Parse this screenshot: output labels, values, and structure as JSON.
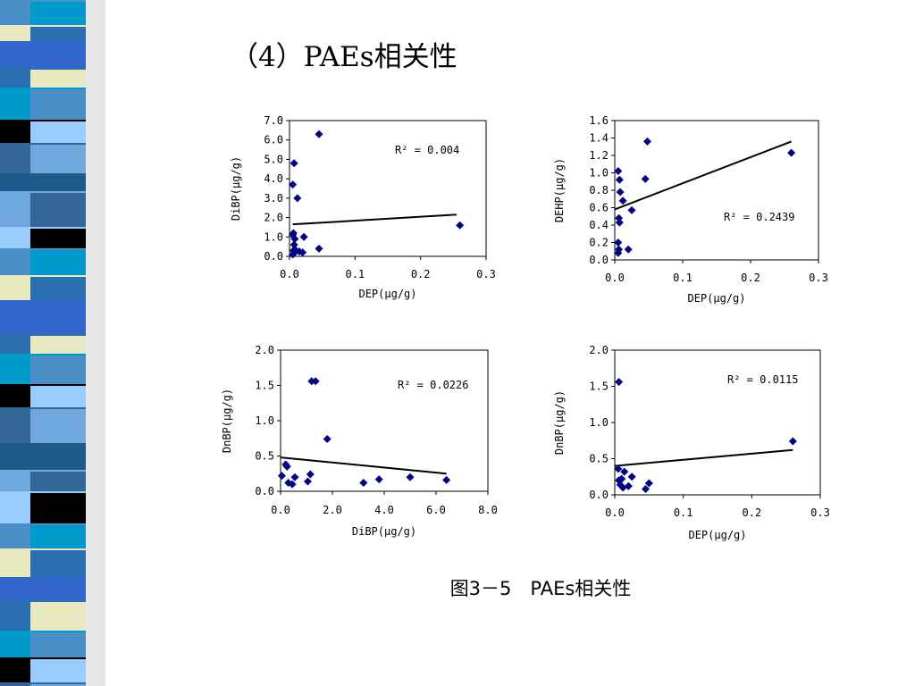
{
  "slide": {
    "title": "（4）PAEs相关性",
    "caption": "图3－5　PAEs相关性"
  },
  "colors": {
    "point": "#00008B",
    "trendline": "#000000",
    "strip": [
      "#4A90C8",
      "#1E5A8C",
      "#0099CC",
      "#E8E8C0",
      "#6FA8DC",
      "#000000",
      "#3366CC",
      "#99CCFF",
      "#336699",
      "#2A6FB0"
    ]
  },
  "chart_data": [
    {
      "type": "scatter",
      "xlabel": "DEP(μg/g)",
      "ylabel": "DiBP(μg/g)",
      "xlim": [
        0,
        0.3
      ],
      "ylim": [
        0,
        7
      ],
      "xticks": [
        "0.0",
        "0.1",
        "0.2",
        "0.3"
      ],
      "yticks": [
        "0.0",
        "1.0",
        "2.0",
        "3.0",
        "4.0",
        "5.0",
        "6.0",
        "7.0"
      ],
      "annotation": {
        "text": "R² = 0.004"
      },
      "points": [
        {
          "x": 0.005,
          "y": 0.1
        },
        {
          "x": 0.006,
          "y": 0.3
        },
        {
          "x": 0.008,
          "y": 0.2
        },
        {
          "x": 0.007,
          "y": 0.6
        },
        {
          "x": 0.005,
          "y": 1.1
        },
        {
          "x": 0.006,
          "y": 1.2
        },
        {
          "x": 0.008,
          "y": 0.9
        },
        {
          "x": 0.01,
          "y": 0.3
        },
        {
          "x": 0.015,
          "y": 0.25
        },
        {
          "x": 0.02,
          "y": 0.2
        },
        {
          "x": 0.022,
          "y": 1.0
        },
        {
          "x": 0.005,
          "y": 3.7
        },
        {
          "x": 0.012,
          "y": 3.0
        },
        {
          "x": 0.007,
          "y": 4.8
        },
        {
          "x": 0.045,
          "y": 6.3
        },
        {
          "x": 0.045,
          "y": 0.4
        },
        {
          "x": 0.26,
          "y": 1.6
        }
      ],
      "trendline": [
        {
          "x": 0.005,
          "y": 1.65
        },
        {
          "x": 0.255,
          "y": 2.15
        }
      ]
    },
    {
      "type": "scatter",
      "xlabel": "DEP(μg/g)",
      "ylabel": "DEHP(μg/g)",
      "xlim": [
        0,
        0.3
      ],
      "ylim": [
        0,
        1.6
      ],
      "xticks": [
        "0.0",
        "0.1",
        "0.2",
        "0.3"
      ],
      "yticks": [
        "0.0",
        "0.2",
        "0.4",
        "0.6",
        "0.8",
        "1.0",
        "1.2",
        "1.4",
        "1.6"
      ],
      "annotation": {
        "text": "R² = 0.2439"
      },
      "points": [
        {
          "x": 0.005,
          "y": 0.08
        },
        {
          "x": 0.006,
          "y": 0.12
        },
        {
          "x": 0.005,
          "y": 0.2
        },
        {
          "x": 0.007,
          "y": 0.43
        },
        {
          "x": 0.006,
          "y": 0.48
        },
        {
          "x": 0.008,
          "y": 0.78
        },
        {
          "x": 0.007,
          "y": 0.92
        },
        {
          "x": 0.005,
          "y": 1.02
        },
        {
          "x": 0.012,
          "y": 0.68
        },
        {
          "x": 0.02,
          "y": 0.12
        },
        {
          "x": 0.025,
          "y": 0.57
        },
        {
          "x": 0.045,
          "y": 0.93
        },
        {
          "x": 0.048,
          "y": 1.36
        },
        {
          "x": 0.26,
          "y": 1.23
        }
      ],
      "trendline": [
        {
          "x": 0.0,
          "y": 0.58
        },
        {
          "x": 0.26,
          "y": 1.36
        }
      ]
    },
    {
      "type": "scatter",
      "xlabel": "DiBP(μg/g)",
      "ylabel": "DnBP(μg/g)",
      "xlim": [
        0,
        8
      ],
      "ylim": [
        0,
        2
      ],
      "xticks": [
        "0.0",
        "2.0",
        "4.0",
        "6.0",
        "8.0"
      ],
      "yticks": [
        "0.0",
        "0.5",
        "1.0",
        "1.5",
        "2.0"
      ],
      "annotation": {
        "text": "R² = 0.0226"
      },
      "points": [
        {
          "x": 0.05,
          "y": 0.22
        },
        {
          "x": 0.2,
          "y": 0.38
        },
        {
          "x": 0.25,
          "y": 0.35
        },
        {
          "x": 0.3,
          "y": 0.12
        },
        {
          "x": 0.45,
          "y": 0.1
        },
        {
          "x": 0.55,
          "y": 0.2
        },
        {
          "x": 1.05,
          "y": 0.14
        },
        {
          "x": 1.15,
          "y": 0.24
        },
        {
          "x": 1.2,
          "y": 1.56
        },
        {
          "x": 1.35,
          "y": 1.56
        },
        {
          "x": 1.8,
          "y": 0.74
        },
        {
          "x": 3.2,
          "y": 0.12
        },
        {
          "x": 3.8,
          "y": 0.17
        },
        {
          "x": 5.0,
          "y": 0.2
        },
        {
          "x": 6.4,
          "y": 0.16
        }
      ],
      "trendline": [
        {
          "x": 0.0,
          "y": 0.48
        },
        {
          "x": 6.4,
          "y": 0.25
        }
      ]
    },
    {
      "type": "scatter",
      "xlabel": "DEP(μg/g)",
      "ylabel": "DnBP(μg/g)",
      "xlim": [
        0,
        0.3
      ],
      "ylim": [
        0,
        2
      ],
      "xticks": [
        "0.0",
        "0.1",
        "0.2",
        "0.3"
      ],
      "yticks": [
        "0.0",
        "0.5",
        "1.0",
        "1.5",
        "2.0"
      ],
      "annotation": {
        "text": "R² = 0.0115"
      },
      "points": [
        {
          "x": 0.005,
          "y": 0.36
        },
        {
          "x": 0.006,
          "y": 0.2
        },
        {
          "x": 0.008,
          "y": 0.14
        },
        {
          "x": 0.01,
          "y": 0.22
        },
        {
          "x": 0.012,
          "y": 0.1
        },
        {
          "x": 0.014,
          "y": 0.32
        },
        {
          "x": 0.02,
          "y": 0.12
        },
        {
          "x": 0.025,
          "y": 0.25
        },
        {
          "x": 0.045,
          "y": 0.08
        },
        {
          "x": 0.05,
          "y": 0.16
        },
        {
          "x": 0.006,
          "y": 1.56
        },
        {
          "x": 0.26,
          "y": 0.74
        }
      ],
      "trendline": [
        {
          "x": 0.0,
          "y": 0.4
        },
        {
          "x": 0.26,
          "y": 0.62
        }
      ]
    }
  ]
}
